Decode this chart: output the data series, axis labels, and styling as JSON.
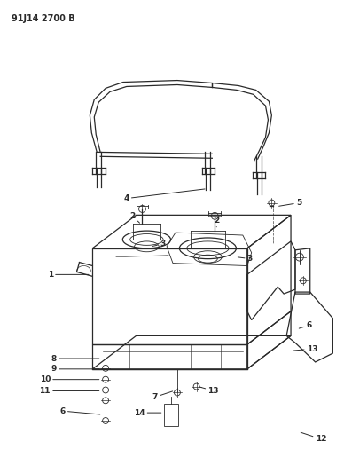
{
  "title": "91J14 2700 B",
  "bg_color": "#ffffff",
  "line_color": "#2a2a2a",
  "label_color": "#000000",
  "fig_width": 3.88,
  "fig_height": 5.33,
  "dpi": 100,
  "title_fontsize": 7.0,
  "label_fontsize": 6.5
}
